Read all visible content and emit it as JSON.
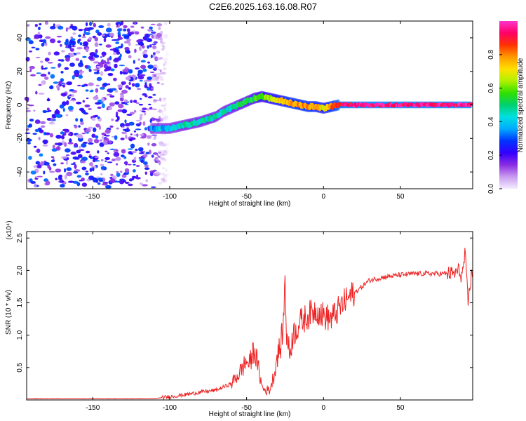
{
  "title": "C2E6.2025.163.16.08.R07",
  "chart_data": [
    {
      "type": "heatmap",
      "xlabel": "Height of straight line (km)",
      "ylabel": "Frequency (Hz)",
      "xlim": [
        -193,
        97
      ],
      "ylim": [
        -50,
        50
      ],
      "xticks": [
        -150,
        -100,
        -50,
        0,
        50
      ],
      "yticks": [
        -40,
        -20,
        0,
        20,
        40
      ],
      "colorbar": {
        "label": "Normalized spectral amplitude",
        "range": [
          0.0,
          1.0
        ],
        "ticks": [
          0.0,
          0.2,
          0.4,
          0.6,
          0.8
        ],
        "tick_labels": [
          "0.0",
          "0.2",
          "0.4",
          "0.6",
          "0.8"
        ],
        "colors": [
          "#f4ecff",
          "#c99cf0",
          "#8a2be2",
          "#3300ff",
          "#0033ff",
          "#00aaff",
          "#00e0e0",
          "#00d070",
          "#30e000",
          "#b0f000",
          "#ffe000",
          "#ff9900",
          "#ff3300",
          "#ff0066",
          "#ff33cc"
        ]
      },
      "noise_region_x": [
        -193,
        -105
      ],
      "ridge": {
        "x": [
          -112,
          -100,
          -90,
          -80,
          -70,
          -65,
          -60,
          -55,
          -50,
          -45,
          -40,
          -35,
          -30,
          -25,
          -20,
          -15,
          -10,
          -5,
          0,
          5,
          10,
          20,
          30,
          40,
          50,
          60,
          70,
          80,
          90,
          96
        ],
        "freq": [
          -14,
          -14,
          -12,
          -10,
          -7,
          -4,
          -2,
          0,
          2,
          4,
          5,
          4,
          3,
          2,
          1,
          0,
          -1,
          -1,
          -2,
          -1,
          0,
          0,
          0,
          0,
          0,
          0,
          0,
          0,
          0,
          0
        ],
        "amplitude": [
          0.35,
          0.4,
          0.45,
          0.45,
          0.45,
          0.45,
          0.45,
          0.5,
          0.5,
          0.55,
          0.6,
          0.65,
          0.7,
          0.75,
          0.8,
          0.8,
          0.8,
          0.75,
          0.7,
          0.8,
          0.9,
          0.95,
          0.95,
          0.95,
          0.95,
          0.95,
          0.95,
          0.95,
          0.95,
          0.95
        ]
      }
    },
    {
      "type": "line",
      "xlabel": "Height of straight line (km)",
      "ylabel": "SNR (10 * v/v)",
      "scale_label": "(x10⁴)",
      "xlim": [
        -193,
        97
      ],
      "ylim": [
        0,
        2.6
      ],
      "xticks": [
        -150,
        -100,
        -50,
        0,
        50
      ],
      "yticks": [
        0.5,
        1.0,
        1.5,
        2.0,
        2.5
      ],
      "ytick_labels": [
        "0.5",
        "1.0",
        "1.5",
        "2.0",
        "2.5"
      ],
      "series": [
        {
          "name": "SNR",
          "color": "#ee2222",
          "x": [
            -193,
            -150,
            -110,
            -100,
            -90,
            -80,
            -70,
            -60,
            -55,
            -50,
            -48,
            -45,
            -42,
            -40,
            -38,
            -35,
            -32,
            -30,
            -28,
            -26,
            -25,
            -24,
            -22,
            -20,
            -15,
            -10,
            -5,
            0,
            5,
            10,
            15,
            20,
            25,
            30,
            40,
            50,
            60,
            70,
            80,
            85,
            88,
            90,
            92,
            94,
            96
          ],
          "y": [
            0.02,
            0.02,
            0.02,
            0.05,
            0.08,
            0.12,
            0.15,
            0.25,
            0.4,
            0.6,
            0.55,
            0.8,
            0.45,
            0.2,
            0.15,
            0.15,
            0.4,
            0.7,
            0.8,
            1.2,
            1.9,
            1.0,
            0.7,
            1.0,
            1.2,
            1.3,
            1.4,
            1.3,
            1.25,
            1.4,
            1.55,
            1.65,
            1.75,
            1.85,
            1.9,
            1.93,
            1.95,
            1.95,
            1.95,
            1.95,
            2.0,
            1.9,
            2.25,
            1.5,
            1.92
          ]
        }
      ]
    }
  ]
}
